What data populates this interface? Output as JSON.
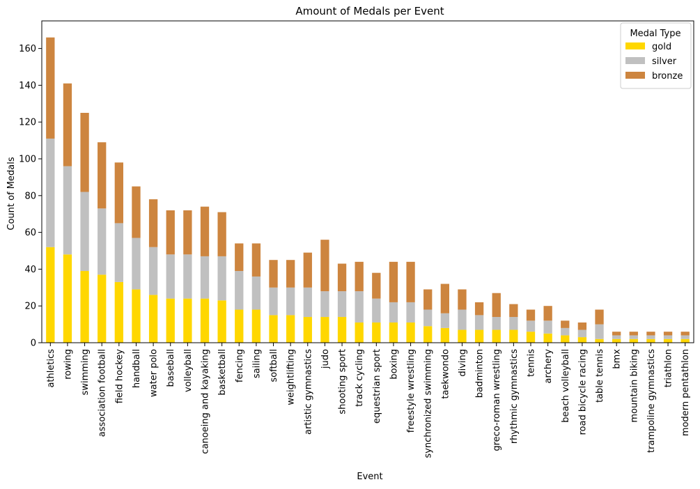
{
  "chart_data": {
    "type": "bar",
    "stacked": true,
    "title": "Amount of Medals per Event",
    "xlabel": "Event",
    "ylabel": "Count of Medals",
    "ylim": [
      0,
      175
    ],
    "yticks": [
      0,
      20,
      40,
      60,
      80,
      100,
      120,
      140,
      160
    ],
    "legend": {
      "title": "Medal Type",
      "placement": "top-right"
    },
    "categories": [
      "athletics",
      "rowing",
      "swimming",
      "association football",
      "field hockey",
      "handball",
      "water polo",
      "baseball",
      "volleyball",
      "canoeing and kayaking",
      "basketball",
      "fencing",
      "sailing",
      "softball",
      "weightlifting",
      "artistic gymnastics",
      "judo",
      "shooting sport",
      "track cycling",
      "equestrian sport",
      "boxing",
      "freestyle wrestling",
      "synchronized swimming",
      "taekwondo",
      "diving",
      "badminton",
      "greco-roman wrestling",
      "rhythmic gymnastics",
      "tennis",
      "archery",
      "beach volleyball",
      "road bicycle racing",
      "table tennis",
      "bmx",
      "mountain biking",
      "trampoline gymnastics",
      "triathlon",
      "modern pentathlon"
    ],
    "series": [
      {
        "name": "gold",
        "color": "#FFD700",
        "values": [
          52,
          48,
          39,
          37,
          33,
          29,
          26,
          24,
          24,
          24,
          23,
          18,
          18,
          15,
          15,
          14,
          14,
          14,
          11,
          11,
          11,
          11,
          9,
          8,
          7,
          7,
          7,
          7,
          6,
          5,
          4,
          3,
          2,
          2,
          2,
          2,
          2,
          2
        ]
      },
      {
        "name": "silver",
        "color": "#C0C0C0",
        "values": [
          59,
          48,
          43,
          36,
          32,
          28,
          26,
          24,
          24,
          23,
          24,
          21,
          18,
          15,
          15,
          16,
          14,
          14,
          17,
          13,
          11,
          11,
          9,
          8,
          11,
          8,
          7,
          7,
          6,
          7,
          4,
          4,
          8,
          2,
          2,
          2,
          2,
          2
        ]
      },
      {
        "name": "bronze",
        "color": "#CD853F",
        "values": [
          55,
          45,
          43,
          36,
          33,
          28,
          26,
          24,
          24,
          27,
          24,
          15,
          18,
          15,
          15,
          19,
          28,
          15,
          16,
          14,
          22,
          22,
          11,
          16,
          11,
          7,
          13,
          7,
          6,
          8,
          4,
          4,
          8,
          2,
          2,
          2,
          2,
          2
        ]
      }
    ]
  }
}
